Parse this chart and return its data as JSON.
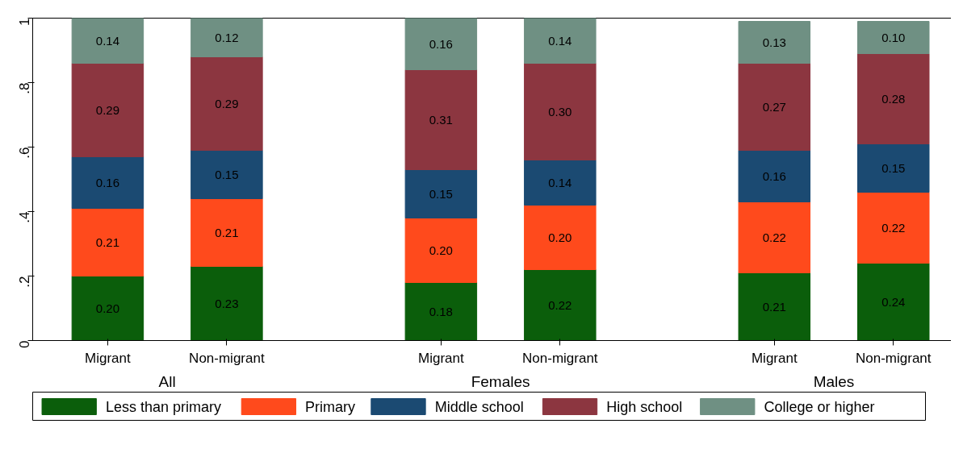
{
  "chart_data": {
    "type": "bar",
    "stacked": true,
    "legend": "bottom",
    "grid": false,
    "categories": [
      "Migrant",
      "Non-migrant",
      "Migrant",
      "Non-migrant",
      "Migrant",
      "Non-migrant"
    ],
    "annotations": [
      "All",
      "Females",
      "Males"
    ],
    "ylim": [
      0,
      1
    ],
    "yticks": [
      0,
      {
        "value": 0.2,
        "label": ".2"
      },
      {
        "value": 0.4,
        "label": ".4"
      },
      {
        "value": 0.6,
        "label": ".6"
      },
      {
        "value": 0.8,
        "label": ".8"
      },
      1
    ],
    "series": [
      {
        "name": "Less than primary",
        "color": "#0b5e0b",
        "values": [
          0.2,
          0.23,
          0.18,
          0.22,
          0.21,
          0.24
        ],
        "value_labels": [
          "0.20",
          "0.23",
          "0.18",
          "0.22",
          "0.21",
          "0.24"
        ]
      },
      {
        "name": "Primary",
        "color": "#ff4a1c",
        "values": [
          0.21,
          0.21,
          0.2,
          0.2,
          0.22,
          0.22
        ],
        "value_labels": [
          "0.21",
          "0.21",
          "0.20",
          "0.20",
          "0.22",
          "0.22"
        ]
      },
      {
        "name": "Middle school",
        "color": "#1b4a72",
        "values": [
          0.16,
          0.15,
          0.15,
          0.14,
          0.16,
          0.15
        ],
        "value_labels": [
          "0.16",
          "0.15",
          "0.15",
          "0.14",
          "0.16",
          "0.15"
        ]
      },
      {
        "name": "High school",
        "color": "#8c3640",
        "values": [
          0.29,
          0.29,
          0.31,
          0.3,
          0.27,
          0.28
        ],
        "value_labels": [
          "0.29",
          "0.29",
          "0.31",
          "0.30",
          "0.27",
          "0.28"
        ]
      },
      {
        "name": "College or higher",
        "color": "#6f9083",
        "values": [
          0.14,
          0.12,
          0.16,
          0.14,
          0.13,
          0.1
        ],
        "value_labels": [
          "0.14",
          "0.12",
          "0.16",
          "0.14",
          "0.13",
          "0.10"
        ]
      }
    ]
  }
}
